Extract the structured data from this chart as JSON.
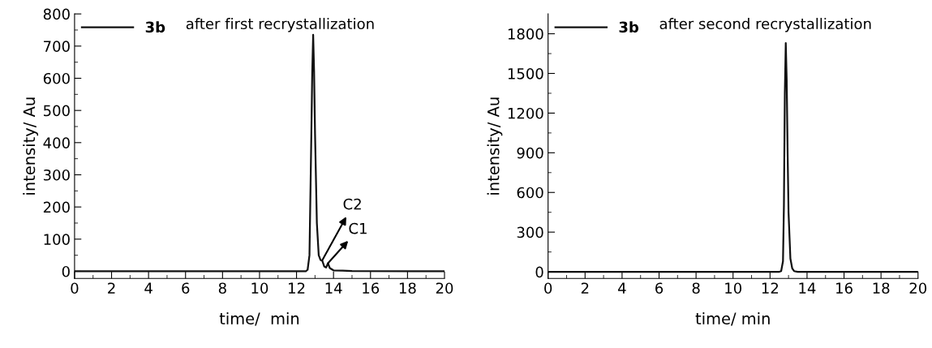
{
  "chart_data": [
    {
      "type": "line",
      "xlabel": "time/  min",
      "ylabel": "intensity/ Au",
      "legend": "top left",
      "grid": false,
      "marker": "none",
      "line_style": "solid",
      "annotations": [
        "after first recrystallization",
        {
          "text": "C2",
          "x": 13.4,
          "y": 35
        },
        {
          "text": "C1",
          "x": 13.7,
          "y": 25
        }
      ],
      "xlim": [
        0,
        20
      ],
      "ylim": [
        -22,
        800
      ],
      "xticks": [
        0,
        {
          "value": 1,
          "label": null
        },
        2,
        {
          "value": 3,
          "label": null
        },
        4,
        {
          "value": 5,
          "label": null
        },
        6,
        {
          "value": 7,
          "label": null
        },
        8,
        {
          "value": 9,
          "label": null
        },
        10,
        {
          "value": 11,
          "label": null
        },
        12,
        {
          "value": 13,
          "label": null
        },
        14,
        {
          "value": 15,
          "label": null
        },
        16,
        {
          "value": 17,
          "label": null
        },
        18,
        {
          "value": 19,
          "label": null
        },
        20
      ],
      "yticks": [
        0,
        {
          "value": 50,
          "label": null
        },
        100,
        {
          "value": 150,
          "label": null
        },
        200,
        {
          "value": 250,
          "label": null
        },
        300,
        {
          "value": 350,
          "label": null
        },
        400,
        {
          "value": 450,
          "label": null
        },
        500,
        {
          "value": 550,
          "label": null
        },
        600,
        {
          "value": 650,
          "label": null
        },
        700,
        {
          "value": 750,
          "label": null
        },
        800
      ],
      "series": [
        {
          "name": "3b",
          "color": "#111111",
          "x": [
            0,
            5,
            10,
            12.5,
            12.6,
            12.7,
            12.8,
            12.85,
            12.9,
            12.95,
            13.0,
            13.1,
            13.2,
            13.3,
            13.4,
            13.5,
            13.6,
            13.7,
            13.8,
            14.0,
            14.5,
            15,
            20
          ],
          "values": [
            0,
            0,
            0,
            0,
            5,
            50,
            420,
            620,
            735,
            620,
            430,
            150,
            50,
            35,
            32,
            15,
            12,
            25,
            10,
            3,
            2,
            1,
            0
          ]
        }
      ]
    },
    {
      "type": "line",
      "xlabel": "time/ min",
      "ylabel": "intensity/ Au",
      "legend": "top left",
      "grid": false,
      "marker": "none",
      "line_style": "solid",
      "annotations": [
        "after second recrystallization"
      ],
      "xlim": [
        0,
        20
      ],
      "ylim": [
        -50,
        1950
      ],
      "xticks": [
        0,
        {
          "value": 1,
          "label": null
        },
        2,
        {
          "value": 3,
          "label": null
        },
        4,
        {
          "value": 5,
          "label": null
        },
        6,
        {
          "value": 7,
          "label": null
        },
        8,
        {
          "value": 9,
          "label": null
        },
        10,
        {
          "value": 11,
          "label": null
        },
        12,
        {
          "value": 13,
          "label": null
        },
        14,
        {
          "value": 15,
          "label": null
        },
        16,
        {
          "value": 17,
          "label": null
        },
        18,
        {
          "value": 19,
          "label": null
        },
        20
      ],
      "yticks": [
        0,
        {
          "value": 150,
          "label": null
        },
        300,
        {
          "value": 450,
          "label": null
        },
        600,
        {
          "value": 750,
          "label": null
        },
        900,
        {
          "value": 1050,
          "label": null
        },
        1200,
        {
          "value": 1350,
          "label": null
        },
        1500,
        {
          "value": 1650,
          "label": null
        },
        1800
      ],
      "series": [
        {
          "name": "3b",
          "color": "#111111",
          "x": [
            0,
            5,
            10,
            12.5,
            12.6,
            12.7,
            12.75,
            12.8,
            12.85,
            12.9,
            12.95,
            13.0,
            13.1,
            13.2,
            13.3,
            13.5,
            20
          ],
          "values": [
            0,
            0,
            0,
            0,
            5,
            80,
            500,
            1350,
            1730,
            1450,
            900,
            450,
            100,
            25,
            5,
            0,
            0
          ]
        }
      ]
    }
  ]
}
